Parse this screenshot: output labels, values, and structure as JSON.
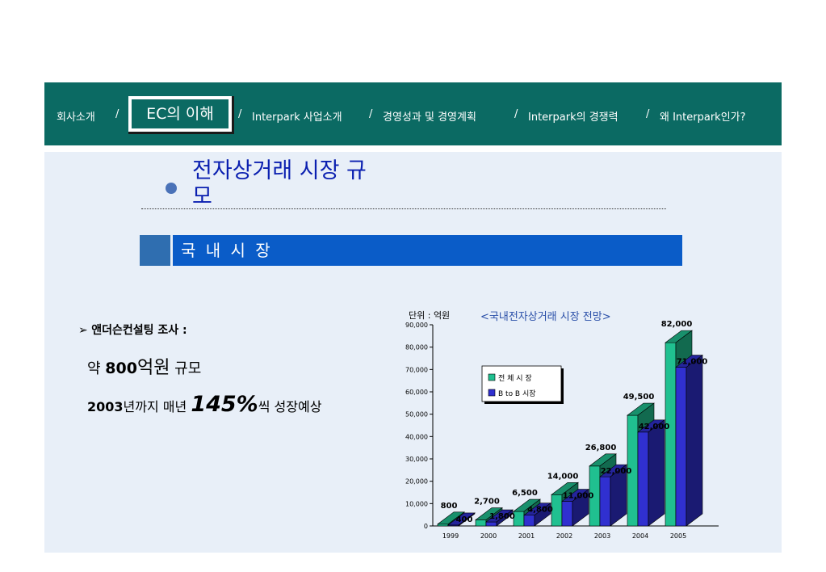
{
  "nav": {
    "items": [
      "회사소개",
      "EC의 이해",
      "Interpark  사업소개",
      "경영성과 및  경영계획",
      "Interpark의  경쟁력",
      "왜 Interpark인가?"
    ],
    "separator": "/"
  },
  "title": "전자상거래 시장 규모",
  "section": {
    "label": "국 내 시 장"
  },
  "summary": {
    "survey_label": "앤더슨컨설팅 조사 :",
    "line1_prefix": "약 ",
    "line1_value": "800",
    "line1_unit": "억원",
    "line1_suffix": " 규모",
    "line2_year": "2003",
    "line2_mid": "년까지 매년 ",
    "line2_pct": "145%",
    "line2_suffix": "씩 성장예상"
  },
  "colors": {
    "nav_bg": "#0b6a63",
    "panel_bg": "#e8eff8",
    "section_bg": "#0a5cc8",
    "series_total": "#20c090",
    "series_b2b": "#3030d0"
  },
  "chart_data": {
    "type": "bar",
    "title": "<국내전자상거래 시장 전망>",
    "unit_label": "단위 : 억원",
    "categories": [
      "1999",
      "2000",
      "2001",
      "2002",
      "2003",
      "2004",
      "2005"
    ],
    "series": [
      {
        "name": "전 체 시 장",
        "values": [
          800,
          2700,
          6500,
          14000,
          26800,
          49500,
          82000
        ],
        "labels": [
          "800",
          "2,700",
          "6,500",
          "14,000",
          "26,800",
          "49,500",
          "82,000"
        ]
      },
      {
        "name": "B to B 시장",
        "values": [
          400,
          1800,
          4800,
          11000,
          22000,
          42000,
          71000
        ],
        "labels": [
          "400",
          "1,800",
          "4,800",
          "11,000",
          "22,000",
          "42,000",
          "71,000"
        ]
      }
    ],
    "yticks": [
      "0",
      "10,000",
      "20,000",
      "30,000",
      "40,000",
      "50,000",
      "60,000",
      "70,000",
      "80,000",
      "90,000"
    ],
    "ylim": [
      0,
      90000
    ],
    "legend": "inside-left",
    "style": "3d"
  }
}
